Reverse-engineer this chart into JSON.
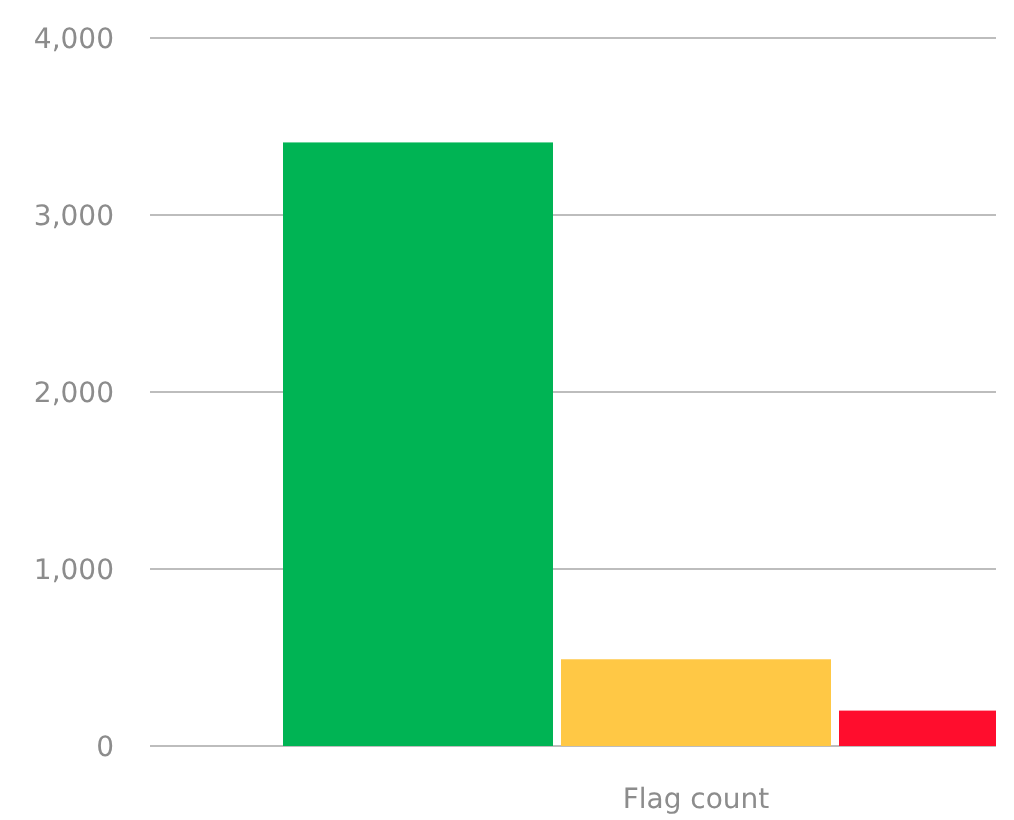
{
  "chart_data": {
    "type": "bar",
    "categories": [
      "Flag count"
    ],
    "series": [
      {
        "color": "#00b454",
        "values": [
          3410
        ]
      },
      {
        "color": "#ffc845",
        "values": [
          490
        ]
      },
      {
        "color": "#ff0d2d",
        "values": [
          200
        ]
      }
    ],
    "ylim": [
      0,
      4000
    ],
    "yticks": [
      0,
      {
        "value": 1000,
        "label": "1,000"
      },
      {
        "value": 2000,
        "label": "2,000"
      },
      {
        "value": 3000,
        "label": "3,000"
      },
      {
        "value": 4000,
        "label": "4,000"
      }
    ],
    "grid": "y"
  }
}
